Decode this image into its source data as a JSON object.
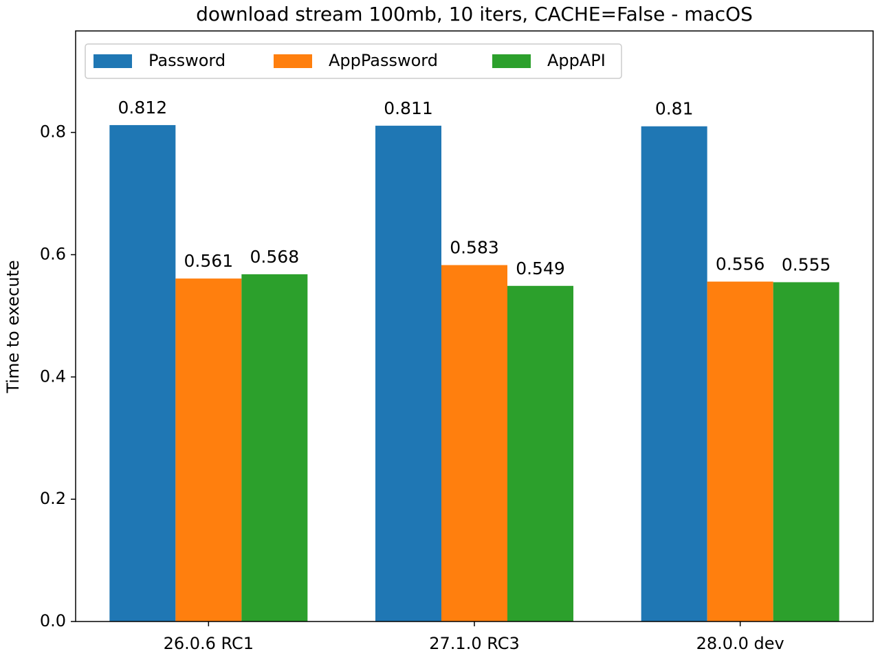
{
  "chart_data": {
    "type": "bar",
    "title": "download stream 100mb, 10 iters, CACHE=False - macOS",
    "y_label": "Time to execute",
    "categories": [
      "26.0.6 RC1",
      "27.1.0 RC3",
      "28.0.0 dev"
    ],
    "series": [
      {
        "name": "Password",
        "color": "#1f77b4",
        "values": [
          0.812,
          0.811,
          0.81
        ]
      },
      {
        "name": "AppPassword",
        "color": "#ff7f0e",
        "values": [
          0.561,
          0.583,
          0.556
        ]
      },
      {
        "name": "AppAPI",
        "color": "#2ca02c",
        "values": [
          0.568,
          0.549,
          0.555
        ]
      }
    ],
    "ylim": [
      0,
      0.966
    ],
    "yticks": [
      {
        "value": 0,
        "label": "0.0"
      },
      0.2,
      0.4,
      0.6,
      0.8
    ],
    "legend": "upper left",
    "grid": false
  }
}
